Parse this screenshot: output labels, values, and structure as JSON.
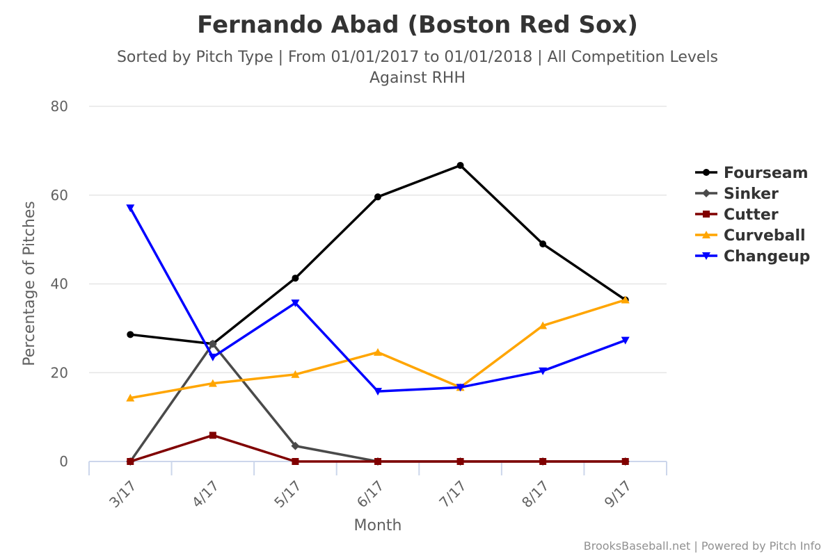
{
  "chart_data": {
    "type": "line",
    "title": "Fernando Abad (Boston Red Sox)",
    "subtitle": [
      "Sorted by Pitch Type | From 01/01/2017 to 01/01/2018 | All Competition Levels",
      "Against RHH"
    ],
    "xlabel": "Month",
    "ylabel": "Percentage of Pitches",
    "categories": [
      "3/17",
      "4/17",
      "5/17",
      "6/17",
      "7/17",
      "8/17",
      "9/17"
    ],
    "ylim": [
      0,
      80
    ],
    "yticks": [
      0,
      20,
      40,
      60,
      80
    ],
    "grid": true,
    "legend_position": "right",
    "series": [
      {
        "name": "Fourseam",
        "color": "#000000",
        "marker": "circle",
        "values": [
          28.6,
          26.5,
          41.3,
          59.6,
          66.7,
          49.0,
          36.4
        ]
      },
      {
        "name": "Sinker",
        "color": "#4a4a4a",
        "marker": "diamond",
        "values": [
          0.0,
          26.5,
          3.5,
          0.0,
          0.0,
          0.0,
          0.0
        ]
      },
      {
        "name": "Cutter",
        "color": "#800000",
        "marker": "square",
        "values": [
          0.0,
          5.9,
          0.0,
          0.0,
          0.0,
          0.0,
          0.0
        ]
      },
      {
        "name": "Curveball",
        "color": "#ffa500",
        "marker": "triangle",
        "values": [
          14.3,
          17.6,
          19.6,
          24.6,
          16.7,
          30.6,
          36.4
        ]
      },
      {
        "name": "Changeup",
        "color": "#0000ff",
        "marker": "triangle-down",
        "values": [
          57.1,
          23.5,
          35.7,
          15.8,
          16.7,
          20.4,
          27.3
        ]
      }
    ]
  },
  "credits": "BrooksBaseball.net | Powered by Pitch Info"
}
